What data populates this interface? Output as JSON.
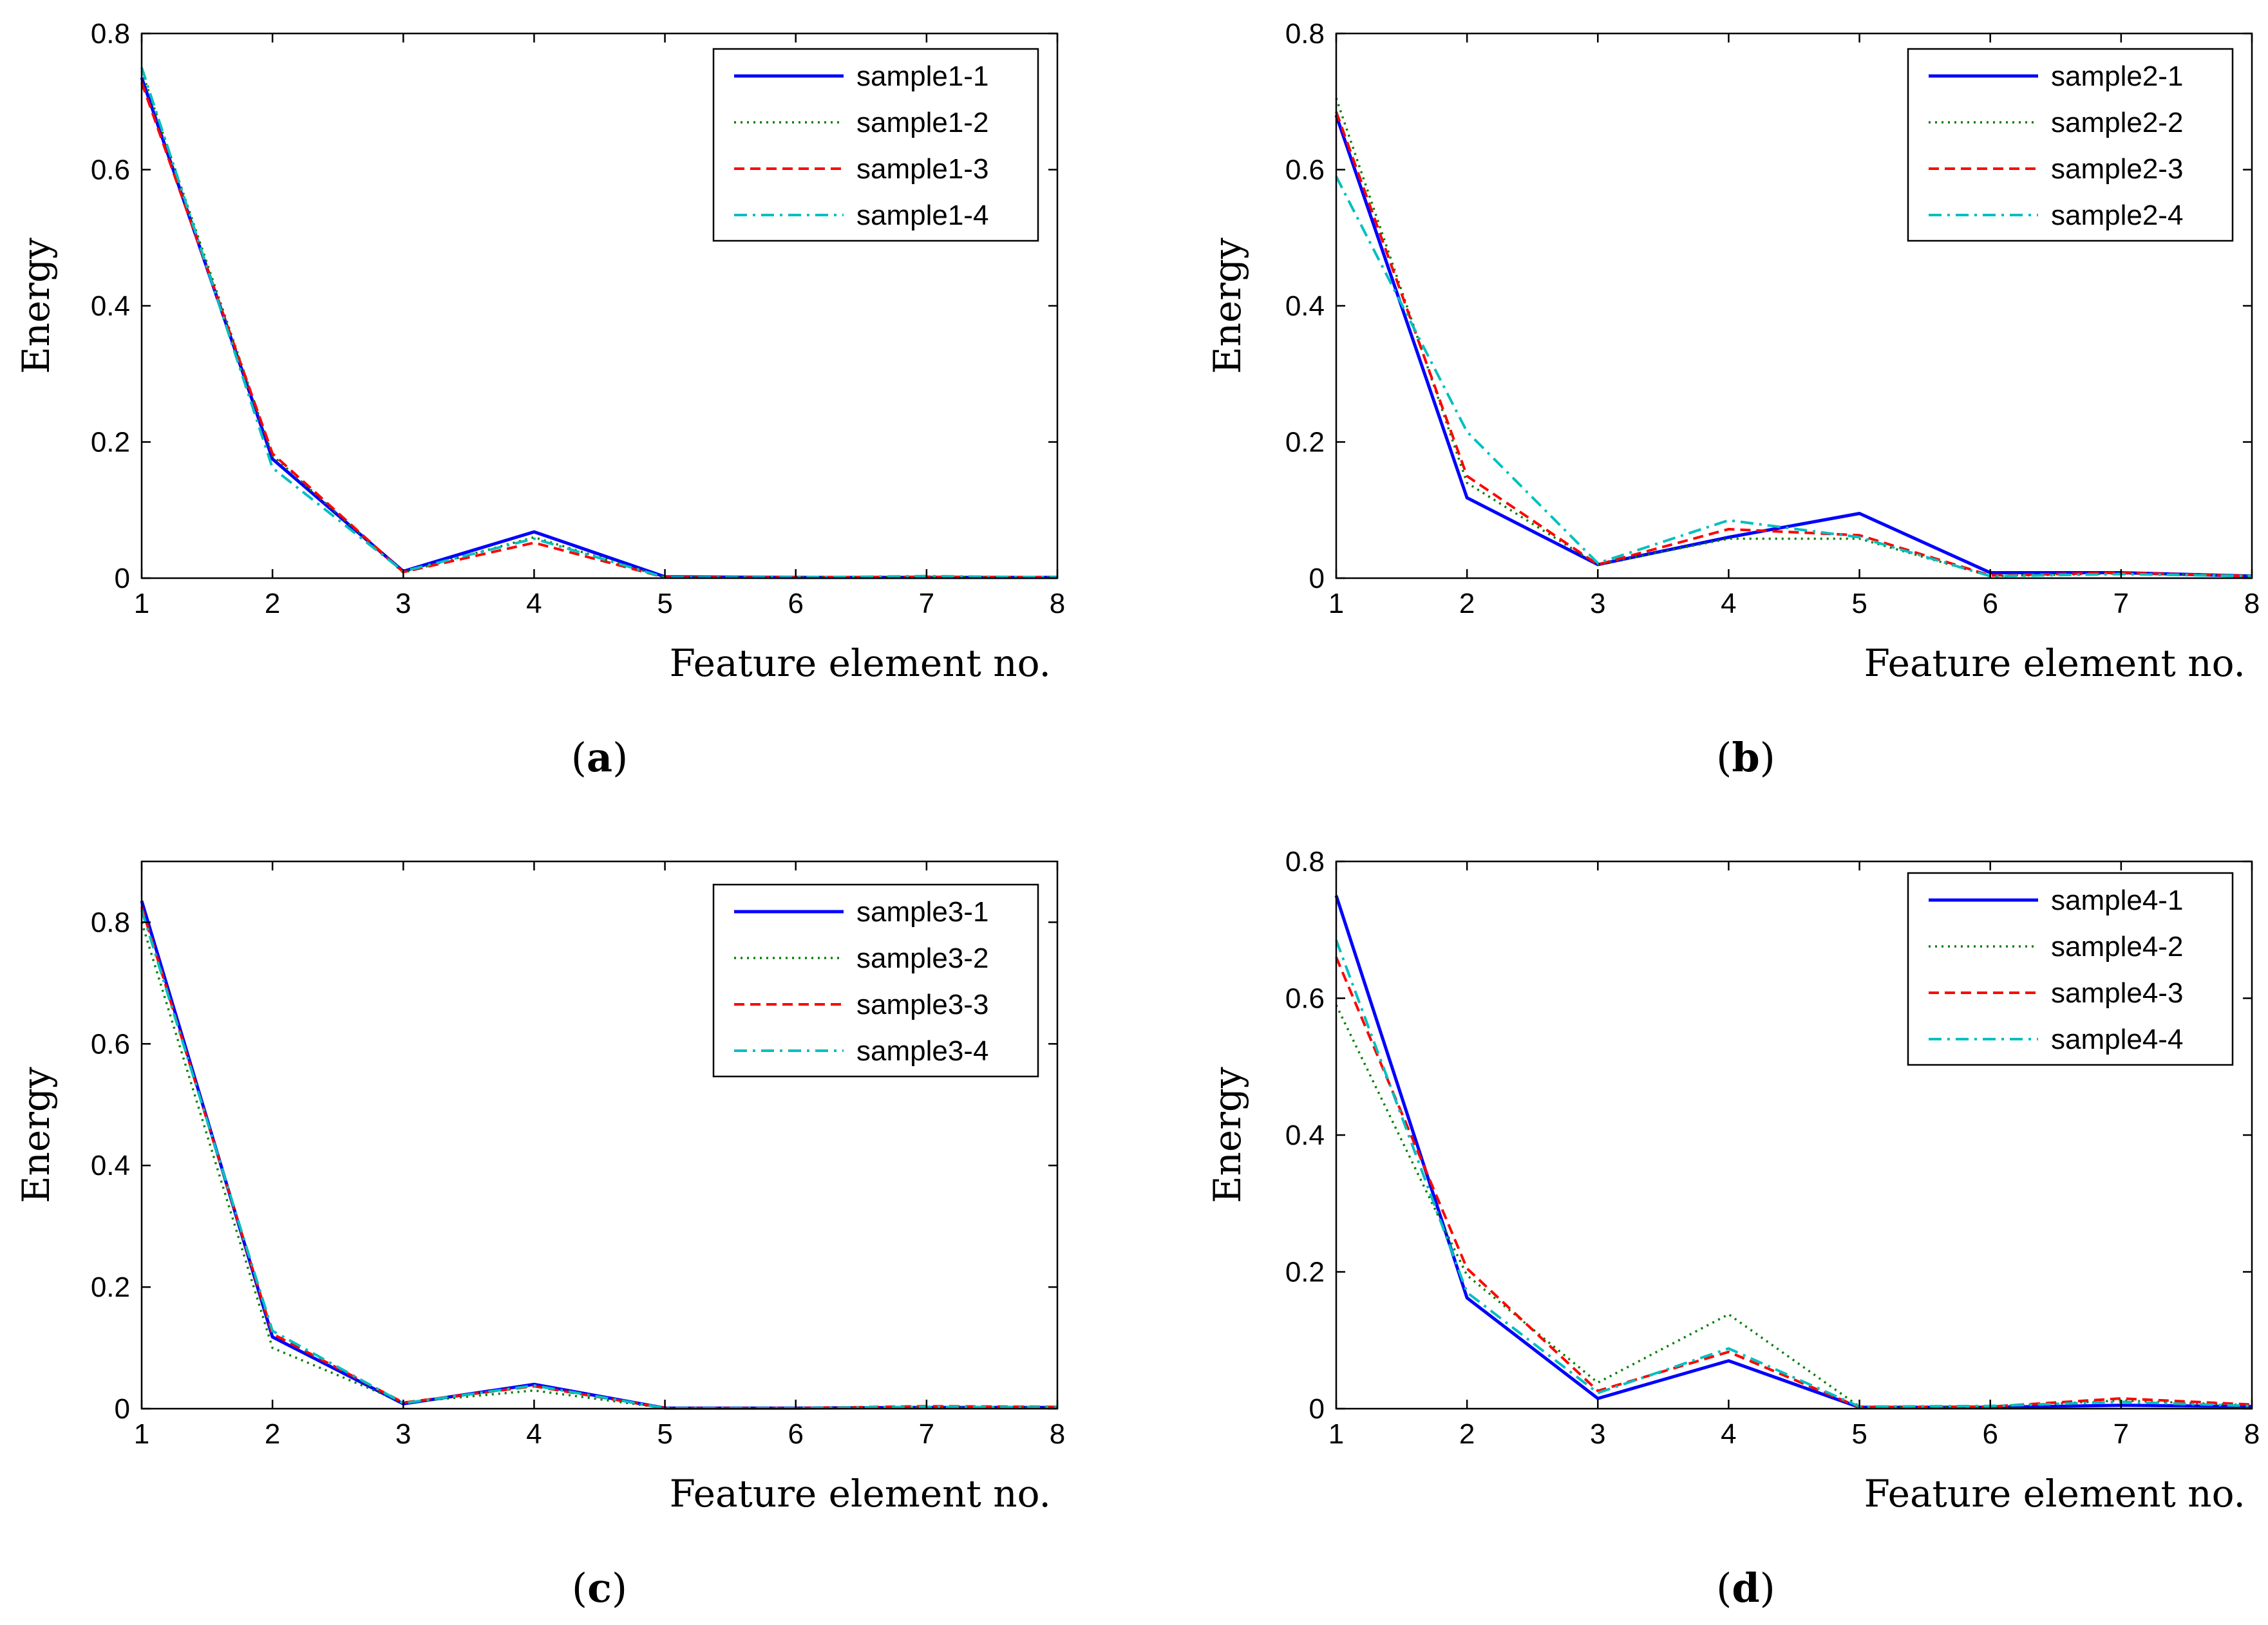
{
  "figure": {
    "panels": [
      {
        "label_open": "(",
        "label": "a",
        "label_close": ")"
      },
      {
        "label_open": "(",
        "label": "b",
        "label_close": ")"
      },
      {
        "label_open": "(",
        "label": "c",
        "label_close": ")"
      },
      {
        "label_open": "(",
        "label": "d",
        "label_close": ")"
      }
    ]
  },
  "series_styles": [
    {
      "color": "#0000ff",
      "dash": "solid"
    },
    {
      "color": "#008000",
      "dash": "dotted"
    },
    {
      "color": "#ff0000",
      "dash": "dashed"
    },
    {
      "color": "#00bfbf",
      "dash": "dashdot"
    }
  ],
  "chart_data": [
    {
      "type": "line",
      "xlabel": "Feature element no.",
      "ylabel": "Energy",
      "xlim": [
        1,
        8
      ],
      "ylim": [
        0,
        0.8
      ],
      "xticks": [
        1,
        2,
        3,
        4,
        5,
        6,
        7,
        8
      ],
      "yticks": [
        0,
        0.2,
        0.4,
        0.6,
        0.8
      ],
      "legend_position": "top-right",
      "x": [
        1,
        2,
        3,
        4,
        5,
        6,
        7,
        8
      ],
      "series": [
        {
          "name": "sample1-1",
          "values": [
            0.735,
            0.175,
            0.01,
            0.068,
            0.002,
            0.001,
            0.001,
            0.001
          ]
        },
        {
          "name": "sample1-2",
          "values": [
            0.745,
            0.18,
            0.008,
            0.06,
            0.001,
            0.001,
            0.002,
            0.001
          ]
        },
        {
          "name": "sample1-3",
          "values": [
            0.728,
            0.183,
            0.009,
            0.052,
            0.001,
            0.001,
            0.002,
            0.001
          ]
        },
        {
          "name": "sample1-4",
          "values": [
            0.75,
            0.162,
            0.01,
            0.058,
            0.001,
            0.001,
            0.003,
            0.001
          ]
        }
      ]
    },
    {
      "type": "line",
      "xlabel": "Feature element no.",
      "ylabel": "Energy",
      "xlim": [
        1,
        8
      ],
      "ylim": [
        0,
        0.8
      ],
      "xticks": [
        1,
        2,
        3,
        4,
        5,
        6,
        7,
        8
      ],
      "yticks": [
        0,
        0.2,
        0.4,
        0.6,
        0.8
      ],
      "legend_position": "top-right",
      "x": [
        1,
        2,
        3,
        4,
        5,
        6,
        7,
        8
      ],
      "series": [
        {
          "name": "sample2-1",
          "values": [
            0.68,
            0.118,
            0.02,
            0.06,
            0.095,
            0.008,
            0.008,
            0.003
          ]
        },
        {
          "name": "sample2-2",
          "values": [
            0.705,
            0.14,
            0.02,
            0.058,
            0.058,
            0.003,
            0.007,
            0.004
          ]
        },
        {
          "name": "sample2-3",
          "values": [
            0.685,
            0.15,
            0.02,
            0.072,
            0.063,
            0.004,
            0.008,
            0.003
          ]
        },
        {
          "name": "sample2-4",
          "values": [
            0.59,
            0.215,
            0.022,
            0.085,
            0.06,
            0.003,
            0.006,
            0.003
          ]
        }
      ]
    },
    {
      "type": "line",
      "xlabel": "Feature element no.",
      "ylabel": "Energy",
      "xlim": [
        1,
        8
      ],
      "ylim": [
        0,
        0.9
      ],
      "xticks": [
        1,
        2,
        3,
        4,
        5,
        6,
        7,
        8
      ],
      "yticks": [
        0,
        0.2,
        0.4,
        0.6,
        0.8
      ],
      "legend_position": "top-right",
      "x": [
        1,
        2,
        3,
        4,
        5,
        6,
        7,
        8
      ],
      "series": [
        {
          "name": "sample3-1",
          "values": [
            0.835,
            0.118,
            0.008,
            0.04,
            0.001,
            0.001,
            0.002,
            0.002
          ]
        },
        {
          "name": "sample3-2",
          "values": [
            0.8,
            0.1,
            0.01,
            0.03,
            0.001,
            0.001,
            0.002,
            0.002
          ]
        },
        {
          "name": "sample3-3",
          "values": [
            0.825,
            0.123,
            0.01,
            0.037,
            0.001,
            0.001,
            0.004,
            0.003
          ]
        },
        {
          "name": "sample3-4",
          "values": [
            0.82,
            0.128,
            0.009,
            0.038,
            0.001,
            0.001,
            0.003,
            0.002
          ]
        }
      ]
    },
    {
      "type": "line",
      "xlabel": "Feature element no.",
      "ylabel": "Energy",
      "xlim": [
        1,
        8
      ],
      "ylim": [
        0,
        0.8
      ],
      "xticks": [
        1,
        2,
        3,
        4,
        5,
        6,
        7,
        8
      ],
      "yticks": [
        0,
        0.2,
        0.4,
        0.6,
        0.8
      ],
      "legend_position": "top-right",
      "x": [
        1,
        2,
        3,
        4,
        5,
        6,
        7,
        8
      ],
      "series": [
        {
          "name": "sample4-1",
          "values": [
            0.75,
            0.162,
            0.015,
            0.07,
            0.002,
            0.002,
            0.005,
            0.003
          ]
        },
        {
          "name": "sample4-2",
          "values": [
            0.59,
            0.195,
            0.038,
            0.138,
            0.003,
            0.003,
            0.012,
            0.005
          ]
        },
        {
          "name": "sample4-3",
          "values": [
            0.66,
            0.205,
            0.026,
            0.083,
            0.002,
            0.003,
            0.015,
            0.006
          ]
        },
        {
          "name": "sample4-4",
          "values": [
            0.685,
            0.17,
            0.023,
            0.088,
            0.003,
            0.004,
            0.01,
            0.004
          ]
        }
      ]
    }
  ]
}
